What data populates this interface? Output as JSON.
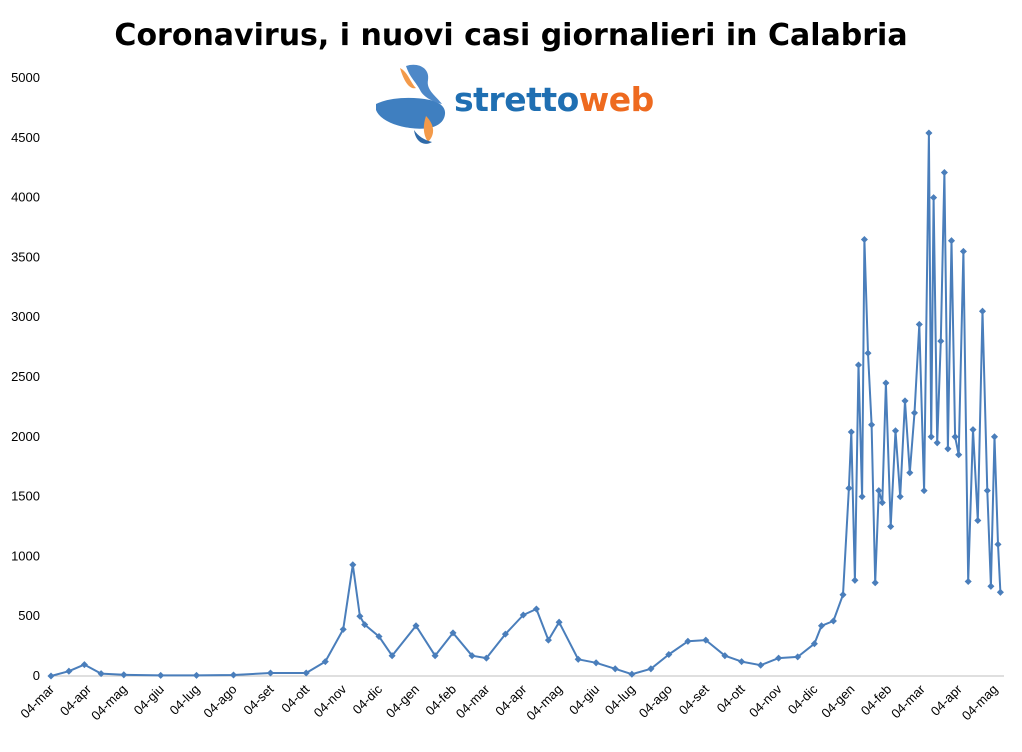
{
  "title": "Coronavirus, i nuovi casi giornalieri in Calabria",
  "logo": {
    "text_part1": "stretto",
    "text_part2": "web",
    "color1": "#1f6fb2",
    "color2": "#ee6a1f"
  },
  "chart_data": {
    "type": "line",
    "title": "Coronavirus, i nuovi casi giornalieri in Calabria",
    "xlabel": "",
    "ylabel": "",
    "ylim": [
      0,
      5000
    ],
    "yticks": [
      0,
      500,
      1000,
      1500,
      2000,
      2500,
      3000,
      3500,
      4000,
      4500,
      5000
    ],
    "x_tick_labels": [
      "04-mar",
      "04-apr",
      "04-mag",
      "04-giu",
      "04-lug",
      "04-ago",
      "04-set",
      "04-ott",
      "04-nov",
      "04-dic",
      "04-gen",
      "04-feb",
      "04-mar",
      "04-apr",
      "04-mag",
      "04-giu",
      "04-lug",
      "04-ago",
      "04-set",
      "04-ott",
      "04-nov",
      "04-dic",
      "04-gen",
      "04-feb",
      "04-mar",
      "04-apr",
      "04-mag"
    ],
    "grid": false,
    "legend": "none",
    "series_color": "#4a7ebb",
    "series": [
      {
        "name": "",
        "x": [
          "2020-03-04",
          "2020-03-19",
          "2020-04-01",
          "2020-04-15",
          "2020-05-04",
          "2020-06-04",
          "2020-07-04",
          "2020-08-04",
          "2020-09-04",
          "2020-10-04",
          "2020-10-20",
          "2020-11-04",
          "2020-11-12",
          "2020-11-18",
          "2020-11-22",
          "2020-12-04",
          "2020-12-15",
          "2021-01-04",
          "2021-01-20",
          "2021-02-04",
          "2021-02-20",
          "2021-03-04",
          "2021-03-20",
          "2021-04-04",
          "2021-04-15",
          "2021-04-25",
          "2021-05-04",
          "2021-05-20",
          "2021-06-04",
          "2021-06-20",
          "2021-07-04",
          "2021-07-20",
          "2021-08-04",
          "2021-08-20",
          "2021-09-04",
          "2021-09-20",
          "2021-10-04",
          "2021-10-20",
          "2021-11-04",
          "2021-11-20",
          "2021-12-04",
          "2021-12-10",
          "2021-12-20",
          "2021-12-28",
          "2022-01-02",
          "2022-01-04",
          "2022-01-07",
          "2022-01-10",
          "2022-01-13",
          "2022-01-15",
          "2022-01-18",
          "2022-01-21",
          "2022-01-24",
          "2022-01-27",
          "2022-01-30",
          "2022-02-02",
          "2022-02-06",
          "2022-02-10",
          "2022-02-14",
          "2022-02-18",
          "2022-02-22",
          "2022-02-26",
          "2022-03-02",
          "2022-03-06",
          "2022-03-10",
          "2022-03-12",
          "2022-03-14",
          "2022-03-17",
          "2022-03-20",
          "2022-03-23",
          "2022-03-26",
          "2022-03-29",
          "2022-04-01",
          "2022-04-04",
          "2022-04-08",
          "2022-04-12",
          "2022-04-16",
          "2022-04-20",
          "2022-04-24",
          "2022-04-28",
          "2022-05-01",
          "2022-05-04",
          "2022-05-07",
          "2022-05-09"
        ],
        "values": [
          0,
          40,
          95,
          20,
          10,
          5,
          5,
          8,
          25,
          25,
          120,
          390,
          930,
          500,
          430,
          330,
          170,
          420,
          170,
          360,
          170,
          150,
          350,
          510,
          560,
          300,
          450,
          140,
          110,
          60,
          15,
          60,
          180,
          290,
          300,
          170,
          120,
          90,
          150,
          160,
          270,
          420,
          460,
          680,
          1570,
          2040,
          800,
          2600,
          1500,
          3650,
          2700,
          2100,
          780,
          1550,
          1450,
          2450,
          1250,
          2050,
          1500,
          2300,
          1700,
          2200,
          2940,
          1550,
          4540,
          2000,
          4000,
          1950,
          2800,
          4210,
          1900,
          3640,
          2000,
          1850,
          3550,
          790,
          2060,
          1300,
          3050,
          1550,
          750,
          2000,
          1100,
          700
        ]
      }
    ]
  }
}
